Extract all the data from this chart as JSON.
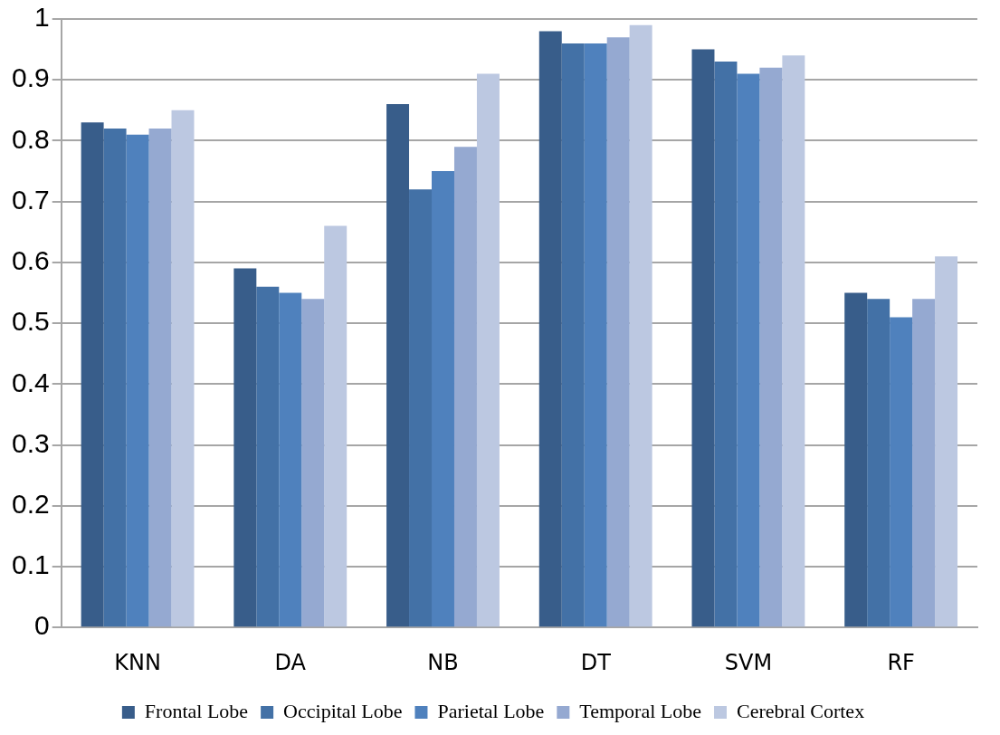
{
  "chart_data": {
    "type": "bar",
    "categories": [
      "KNN",
      "DA",
      "NB",
      "DT",
      "SVM",
      "RF"
    ],
    "series": [
      {
        "name": "Frontal Lobe",
        "color": "#385d8a",
        "values": [
          0.83,
          0.59,
          0.86,
          0.98,
          0.95,
          0.55
        ]
      },
      {
        "name": "Occipital Lobe",
        "color": "#4371a6",
        "values": [
          0.82,
          0.56,
          0.72,
          0.96,
          0.93,
          0.54
        ]
      },
      {
        "name": "Parietal Lobe",
        "color": "#4f81bd",
        "values": [
          0.81,
          0.55,
          0.75,
          0.96,
          0.91,
          0.51
        ]
      },
      {
        "name": "Temporal Lobe",
        "color": "#95a9d1",
        "values": [
          0.82,
          0.54,
          0.79,
          0.97,
          0.92,
          0.54
        ]
      },
      {
        "name": "Cerebral Cortex",
        "color": "#bcc8e1",
        "values": [
          0.85,
          0.66,
          0.91,
          0.99,
          0.94,
          0.61
        ]
      }
    ],
    "ylim": [
      0,
      1
    ],
    "yticks": [
      0,
      0.1,
      0.2,
      0.3,
      0.4,
      0.5,
      0.6,
      0.7,
      0.8,
      0.9,
      1
    ],
    "grid": "y",
    "legend": "bottom"
  }
}
